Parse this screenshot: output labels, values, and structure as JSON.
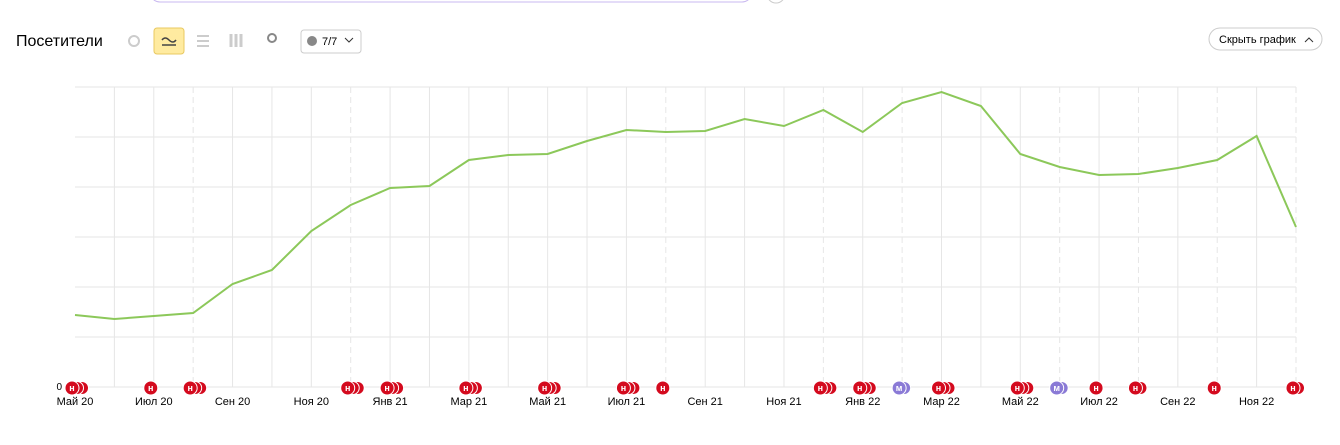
{
  "toolbar": {
    "title": "Посетители",
    "comments_button": "7/7",
    "hide_button": "Скрыть график"
  },
  "chart_data": {
    "type": "line",
    "categories": [
      "Май 20",
      null,
      "Июл 20",
      null,
      "Сен 20",
      null,
      "Ноя 20",
      null,
      "Янв 21",
      null,
      "Мар 21",
      null,
      "Май 21",
      null,
      "Июл 21",
      null,
      "Сен 21",
      null,
      "Ноя 21",
      null,
      "Янв 22",
      null,
      "Мар 22",
      null,
      "Май 22",
      null,
      "Июл 22",
      null,
      "Сен 22",
      null,
      "Ноя 22",
      null
    ],
    "series": [
      {
        "color": "#8cc85a",
        "values": [
          1.44,
          1.36,
          1.42,
          1.48,
          2.06,
          2.34,
          3.12,
          3.64,
          3.98,
          4.02,
          4.54,
          4.64,
          4.66,
          4.92,
          5.14,
          5.1,
          5.12,
          5.36,
          5.22,
          5.54,
          5.1,
          5.68,
          5.9,
          5.62,
          4.66,
          4.4,
          4.24,
          4.26,
          4.38,
          4.54,
          5.02,
          3.2
        ]
      }
    ],
    "ylim": [
      0,
      6
    ],
    "yticks": [
      0
    ],
    "ygrid": [
      0,
      1,
      2,
      3,
      4,
      5,
      6
    ],
    "grid": true,
    "markers": [
      {
        "month": 0,
        "label": "н",
        "count": 3
      },
      {
        "month": 2,
        "label": "н",
        "count": 1
      },
      {
        "month": 3,
        "label": "н",
        "count": 3
      },
      {
        "month": 7,
        "label": "н",
        "count": 3
      },
      {
        "month": 8,
        "label": "н",
        "count": 3
      },
      {
        "month": 10,
        "label": "н",
        "count": 3
      },
      {
        "month": 12,
        "label": "н",
        "count": 3
      },
      {
        "month": 14,
        "label": "н",
        "count": 3
      },
      {
        "month": 15,
        "label": "н",
        "count": 1
      },
      {
        "month": 19,
        "label": "н",
        "count": 3
      },
      {
        "month": 20,
        "label": "н",
        "count": 3
      },
      {
        "month": 21,
        "label": "м",
        "count": 2
      },
      {
        "month": 22,
        "label": "н",
        "count": 3
      },
      {
        "month": 24,
        "label": "н",
        "count": 3
      },
      {
        "month": 25,
        "label": "м",
        "count": 2
      },
      {
        "month": 26,
        "label": "н",
        "count": 1
      },
      {
        "month": 27,
        "label": "н",
        "count": 2
      },
      {
        "month": 29,
        "label": "н",
        "count": 1
      },
      {
        "month": 31,
        "label": "н",
        "count": 2
      }
    ]
  }
}
